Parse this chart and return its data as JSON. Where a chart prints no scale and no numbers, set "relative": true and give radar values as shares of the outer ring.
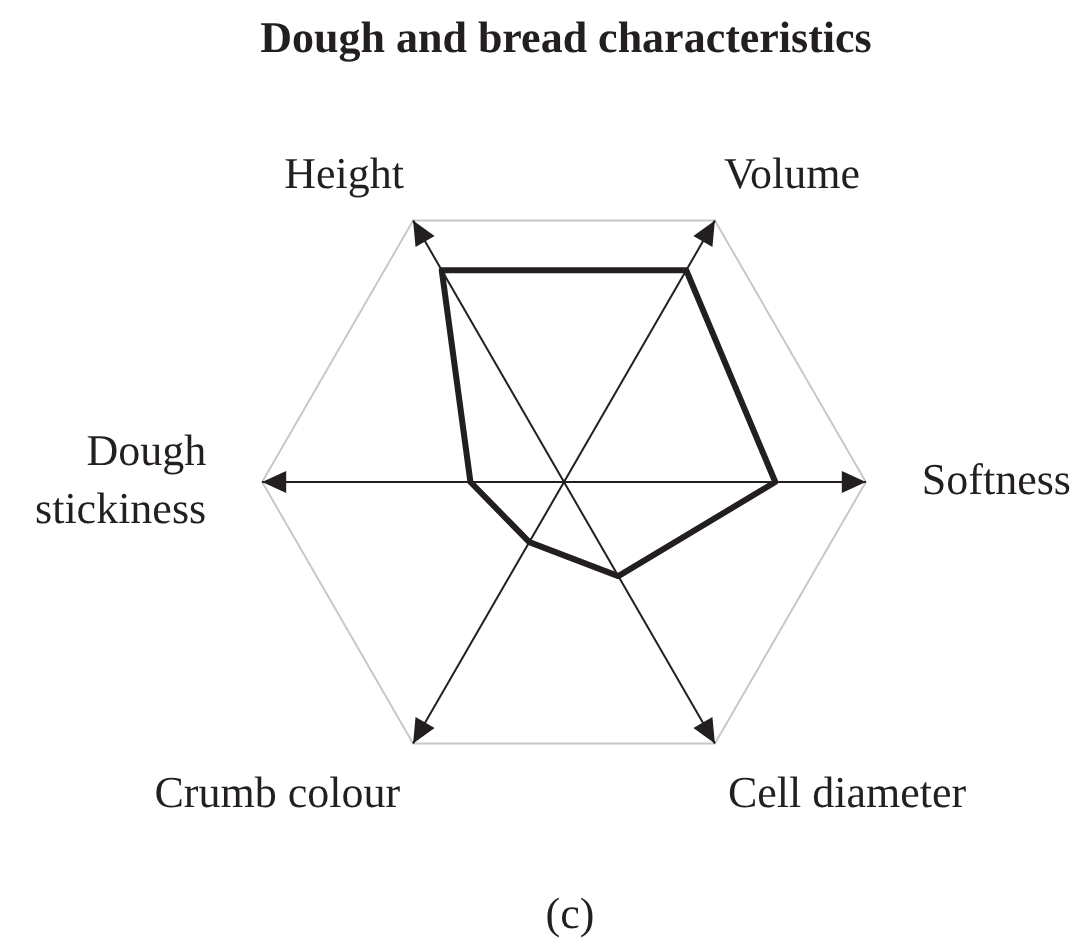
{
  "chart_data": {
    "type": "radar",
    "title": "Dough and bread characteristics",
    "categories": [
      "Volume",
      "Softness",
      "Cell diameter",
      "Crumb colour",
      "Dough stickiness",
      "Height"
    ],
    "series": [
      {
        "color": "#231f20",
        "values": [
          0.81,
          0.7,
          0.36,
          0.23,
          0.31,
          0.81
        ]
      }
    ],
    "relative": true,
    "legend": false,
    "marker": "none",
    "grid": true,
    "annotations": [
      "(c)"
    ]
  }
}
